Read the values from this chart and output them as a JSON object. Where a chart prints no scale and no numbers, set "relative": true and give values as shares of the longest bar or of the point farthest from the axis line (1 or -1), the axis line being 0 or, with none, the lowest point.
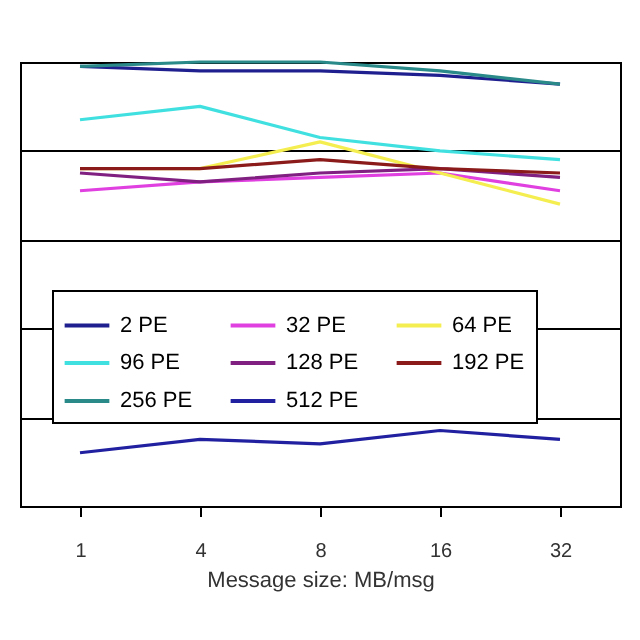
{
  "chart_data": {
    "type": "line",
    "xlabel": "Message size: MB/msg",
    "categories": [
      "1",
      "4",
      "8",
      "16",
      "32"
    ],
    "relative": true,
    "grid": "y",
    "legend": "bottom right",
    "marker": "none",
    "line_style": "solid",
    "series": [
      {
        "name": "2 PE",
        "color": "#1f1f8f",
        "values": [
          0.99,
          0.98,
          0.98,
          0.97,
          0.95
        ]
      },
      {
        "name": "32 PE",
        "color": "#e040e0",
        "values": [
          0.71,
          0.73,
          0.74,
          0.75,
          0.71
        ]
      },
      {
        "name": "64 PE",
        "color": "#f5ee50",
        "values": [
          0.76,
          0.76,
          0.82,
          0.75,
          0.68
        ]
      },
      {
        "name": "96 PE",
        "color": "#40e0e0",
        "values": [
          0.87,
          0.9,
          0.83,
          0.8,
          0.78
        ]
      },
      {
        "name": "128 PE",
        "color": "#802080",
        "values": [
          0.75,
          0.73,
          0.75,
          0.76,
          0.74
        ]
      },
      {
        "name": "192 PE",
        "color": "#8b1a1a",
        "values": [
          0.76,
          0.76,
          0.78,
          0.76,
          0.75
        ]
      },
      {
        "name": "256 PE",
        "color": "#2a8a8a",
        "values": [
          0.99,
          1.0,
          1.0,
          0.98,
          0.95
        ]
      },
      {
        "name": "512 PE",
        "color": "#2020a0",
        "values": [
          0.12,
          0.15,
          0.14,
          0.17,
          0.15
        ]
      }
    ]
  }
}
